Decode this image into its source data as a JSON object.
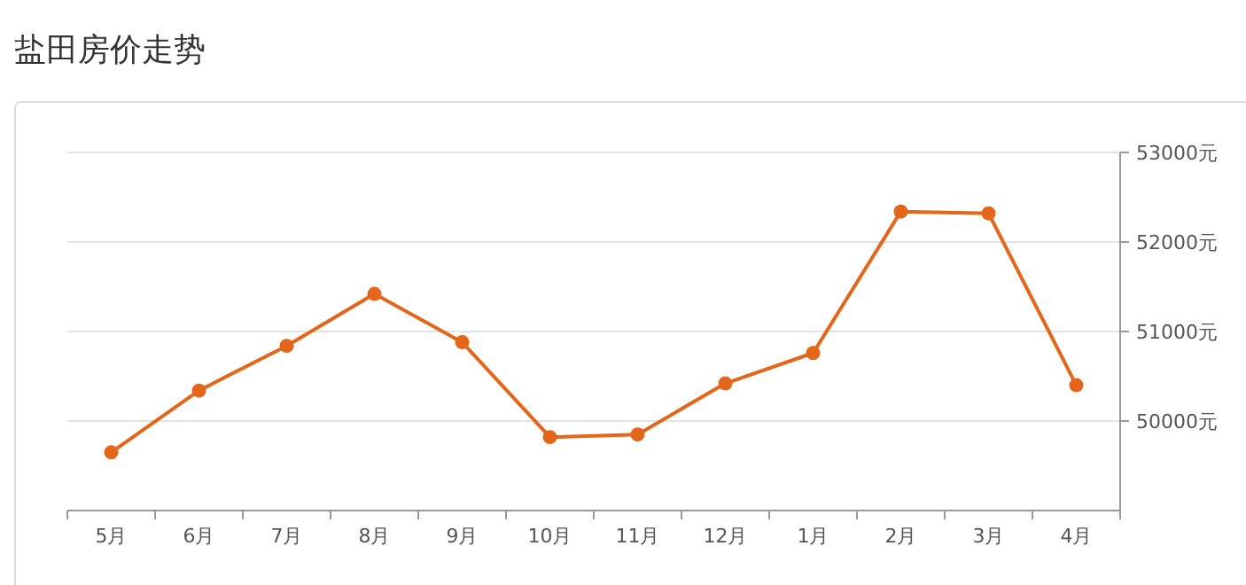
{
  "chart_data": {
    "type": "line",
    "title": "盐田房价走势",
    "categories": [
      "5月",
      "6月",
      "7月",
      "8月",
      "9月",
      "10月",
      "11月",
      "12月",
      "1月",
      "2月",
      "3月",
      "4月"
    ],
    "series": [
      {
        "color": "#e4661a",
        "values": [
          49650,
          50340,
          50840,
          51420,
          50880,
          49820,
          49850,
          50420,
          50760,
          52340,
          52320,
          50400
        ]
      }
    ],
    "ylim": [
      49000,
      53000
    ],
    "yticks": [
      {
        "value": 50000,
        "label": "50000元"
      },
      {
        "value": 51000,
        "label": "51000元"
      },
      {
        "value": 52000,
        "label": "52000元"
      },
      {
        "value": 53000,
        "label": "53000元"
      }
    ],
    "grid": "y",
    "marker": "circle"
  }
}
